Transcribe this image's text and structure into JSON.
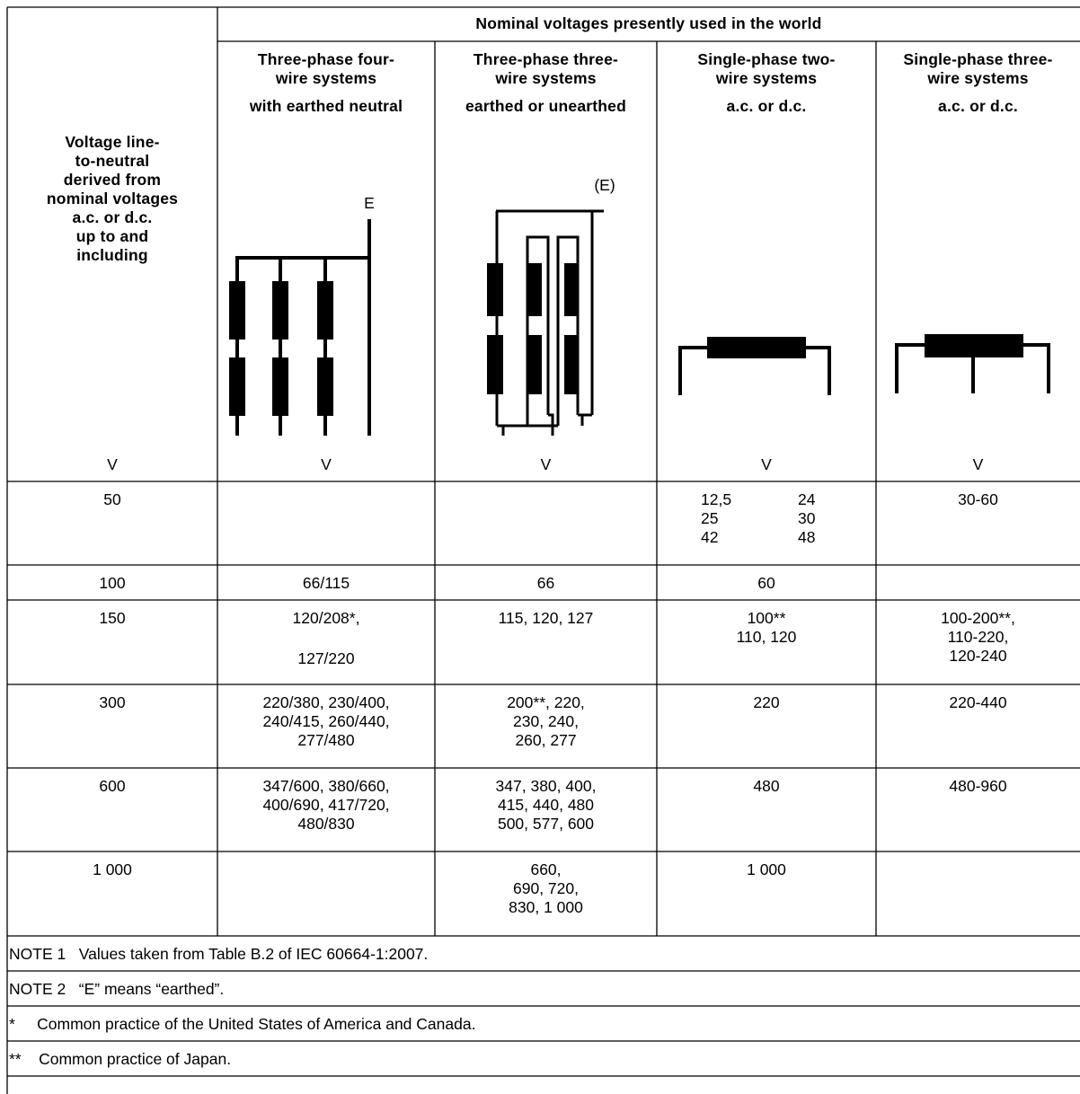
{
  "header": {
    "span_title": "Nominal voltages presently used in the world",
    "first_col": "Voltage line-\nto-neutral\nderived from\nnominal voltages\na.c. or d.c.\nup to and\nincluding",
    "columns": [
      {
        "title": "Three-phase four-\nwire systems",
        "subtitle": "with earthed neutral",
        "diagram_label": "E"
      },
      {
        "title": "Three-phase three-\nwire systems",
        "subtitle": "earthed or unearthed",
        "diagram_label": "(E)"
      },
      {
        "title": "Single-phase two-\nwire systems",
        "subtitle": "a.c. or d.c."
      },
      {
        "title": "Single-phase three-\nwire systems",
        "subtitle": "a.c. or d.c."
      }
    ],
    "unit": "V"
  },
  "rows": [
    {
      "v": "50",
      "c1": "",
      "c2": "",
      "c3a": "12,5\n25\n42",
      "c3b": "24\n30\n48",
      "c4": "30-60"
    },
    {
      "v": "100",
      "c1": "66/115",
      "c2": "66",
      "c3": "60",
      "c4": ""
    },
    {
      "v": "150",
      "c1": "120/208*,",
      "c1b": "127/220",
      "c2": "115, 120, 127",
      "c3": "100**\n110, 120",
      "c4": "100-200**,\n110-220,\n120-240"
    },
    {
      "v": "300",
      "c1": "220/380, 230/400,\n240/415, 260/440,\n277/480",
      "c2": "200**, 220,\n230, 240,\n260, 277",
      "c3": "220",
      "c4": "220-440"
    },
    {
      "v": "600",
      "c1": "347/600, 380/660,\n400/690, 417/720,\n480/830",
      "c2": "347, 380, 400,\n415, 440, 480\n500, 577, 600",
      "c3": "480",
      "c4": "480-960"
    },
    {
      "v": "1 000",
      "c1": "",
      "c2": "660,\n690, 720,\n830, 1 000",
      "c3": "1 000",
      "c4": ""
    }
  ],
  "notes": [
    "NOTE 1   Values taken from Table B.2 of IEC 60664-1:2007.",
    "NOTE 2   “E” means “earthed”.",
    "*     Common practice of the United States of America and Canada.",
    "**    Common practice of Japan."
  ]
}
